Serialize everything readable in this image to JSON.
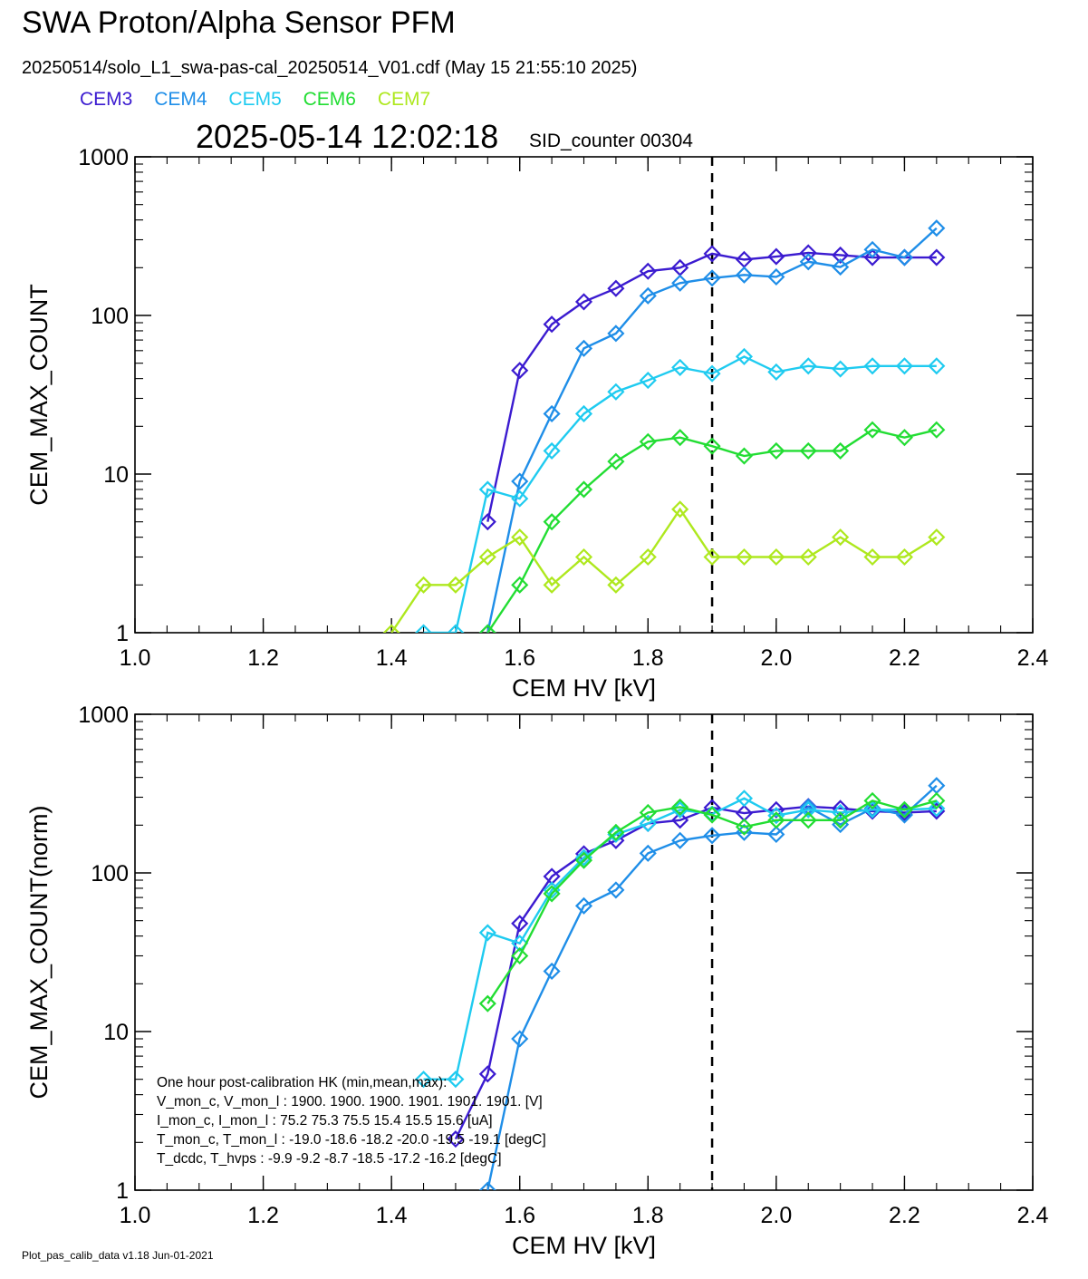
{
  "header": {
    "title": "SWA Proton/Alpha Sensor PFM",
    "subtitle": "20250514/solo_L1_swa-pas-cal_20250514_V01.cdf  (May 15 21:55:10 2025)",
    "timestamp": "2025-05-14 12:02:18",
    "sid": "SID_counter 00304"
  },
  "legend": [
    {
      "name": "CEM3",
      "color": "#3b1bd0"
    },
    {
      "name": "CEM4",
      "color": "#1f8ee8"
    },
    {
      "name": "CEM5",
      "color": "#1fcbf0"
    },
    {
      "name": "CEM6",
      "color": "#22dd33"
    },
    {
      "name": "CEM7",
      "color": "#aee81e"
    }
  ],
  "footer": "Plot_pas_calib_data v1.18 Jun-01-2021",
  "hk_table": {
    "title": "One hour post-calibration HK (min,mean,max):",
    "rows": [
      "V_mon_c, V_mon_l :    1900.  1900.  1900.        1901.  1901.  1901. [V]",
      "I_mon_c,  I_mon_l :      75.2   75.3   75.5          15.4   15.5   15.6  [uA]",
      "T_mon_c, T_mon_l :   -19.0  -18.6  -18.2        -20.0  -19.5  -19.1  [degC]",
      "T_dcdc,     T_hvps :      -9.9    -9.2    -8.7         -18.5  -17.2  -16.2  [degC]"
    ]
  },
  "chart_data": [
    {
      "type": "line",
      "title": "",
      "xlabel": "CEM HV [kV]",
      "ylabel": "CEM_MAX_COUNT",
      "xlim": [
        1.0,
        2.4
      ],
      "ylim": [
        1,
        1000
      ],
      "yscale": "log",
      "xticks": [
        "1.0",
        "1.2",
        "1.4",
        "1.6",
        "1.8",
        "2.0",
        "2.2",
        "2.4"
      ],
      "yticks": [
        "1",
        "10",
        "100",
        "1000"
      ],
      "vline": 1.9,
      "marker": "diamond",
      "x": [
        1.4,
        1.45,
        1.5,
        1.55,
        1.6,
        1.65,
        1.7,
        1.75,
        1.8,
        1.85,
        1.9,
        1.95,
        2.0,
        2.05,
        2.1,
        2.15,
        2.2,
        2.25
      ],
      "series": [
        {
          "color": "#3b1bd0",
          "values": [
            null,
            null,
            null,
            5,
            45,
            88,
            122,
            148,
            190,
            200,
            245,
            225,
            235,
            248,
            240,
            232,
            232,
            232
          ]
        },
        {
          "color": "#1f8ee8",
          "values": [
            null,
            null,
            null,
            1,
            9,
            24,
            62,
            77,
            133,
            160,
            172,
            180,
            175,
            218,
            202,
            260,
            232,
            355
          ]
        },
        {
          "color": "#1fcbf0",
          "values": [
            null,
            1,
            1,
            8,
            7,
            14,
            24,
            33,
            39,
            47,
            43,
            55,
            44,
            48,
            46,
            48,
            48,
            48
          ]
        },
        {
          "color": "#22dd33",
          "values": [
            null,
            null,
            null,
            1,
            2,
            5,
            8,
            12,
            16,
            17,
            15,
            13,
            14,
            14,
            14,
            19,
            17,
            19
          ]
        },
        {
          "color": "#aee81e",
          "values": [
            1,
            2,
            2,
            3,
            4,
            2,
            3,
            2,
            3,
            6,
            3,
            3,
            3,
            3,
            4,
            3,
            3,
            4
          ]
        }
      ]
    },
    {
      "type": "line",
      "title": "",
      "xlabel": "CEM HV [kV]",
      "ylabel": "CEM_MAX_COUNT(norm)",
      "xlim": [
        1.0,
        2.4
      ],
      "ylim": [
        1,
        1000
      ],
      "yscale": "log",
      "xticks": [
        "1.0",
        "1.2",
        "1.4",
        "1.6",
        "1.8",
        "2.0",
        "2.2",
        "2.4"
      ],
      "yticks": [
        "1",
        "10",
        "100",
        "1000"
      ],
      "vline": 1.9,
      "marker": "diamond",
      "x": [
        1.4,
        1.45,
        1.5,
        1.55,
        1.6,
        1.65,
        1.7,
        1.75,
        1.8,
        1.85,
        1.9,
        1.95,
        2.0,
        2.05,
        2.1,
        2.15,
        2.2,
        2.25
      ],
      "series": [
        {
          "color": "#3b1bd0",
          "values": [
            null,
            null,
            2.1,
            5.4,
            48,
            95,
            132,
            160,
            205,
            215,
            258,
            238,
            250,
            262,
            255,
            245,
            240,
            245
          ]
        },
        {
          "color": "#1f8ee8",
          "values": [
            null,
            null,
            null,
            1,
            9,
            24,
            62,
            78,
            133,
            160,
            172,
            180,
            175,
            260,
            202,
            255,
            232,
            355
          ]
        },
        {
          "color": "#1fcbf0",
          "values": [
            null,
            5,
            5,
            42,
            36,
            78,
            125,
            175,
            205,
            250,
            235,
            295,
            230,
            250,
            240,
            250,
            250,
            255
          ]
        },
        {
          "color": "#22dd33",
          "values": [
            null,
            null,
            null,
            15,
            30,
            74,
            120,
            180,
            240,
            260,
            232,
            195,
            215,
            215,
            215,
            285,
            250,
            285
          ]
        },
        {
          "color": "#aee81e",
          "values": [
            null,
            null,
            null,
            null,
            null,
            null,
            null,
            null,
            null,
            null,
            null,
            null,
            null,
            null,
            null,
            null,
            null,
            null
          ]
        }
      ]
    }
  ]
}
